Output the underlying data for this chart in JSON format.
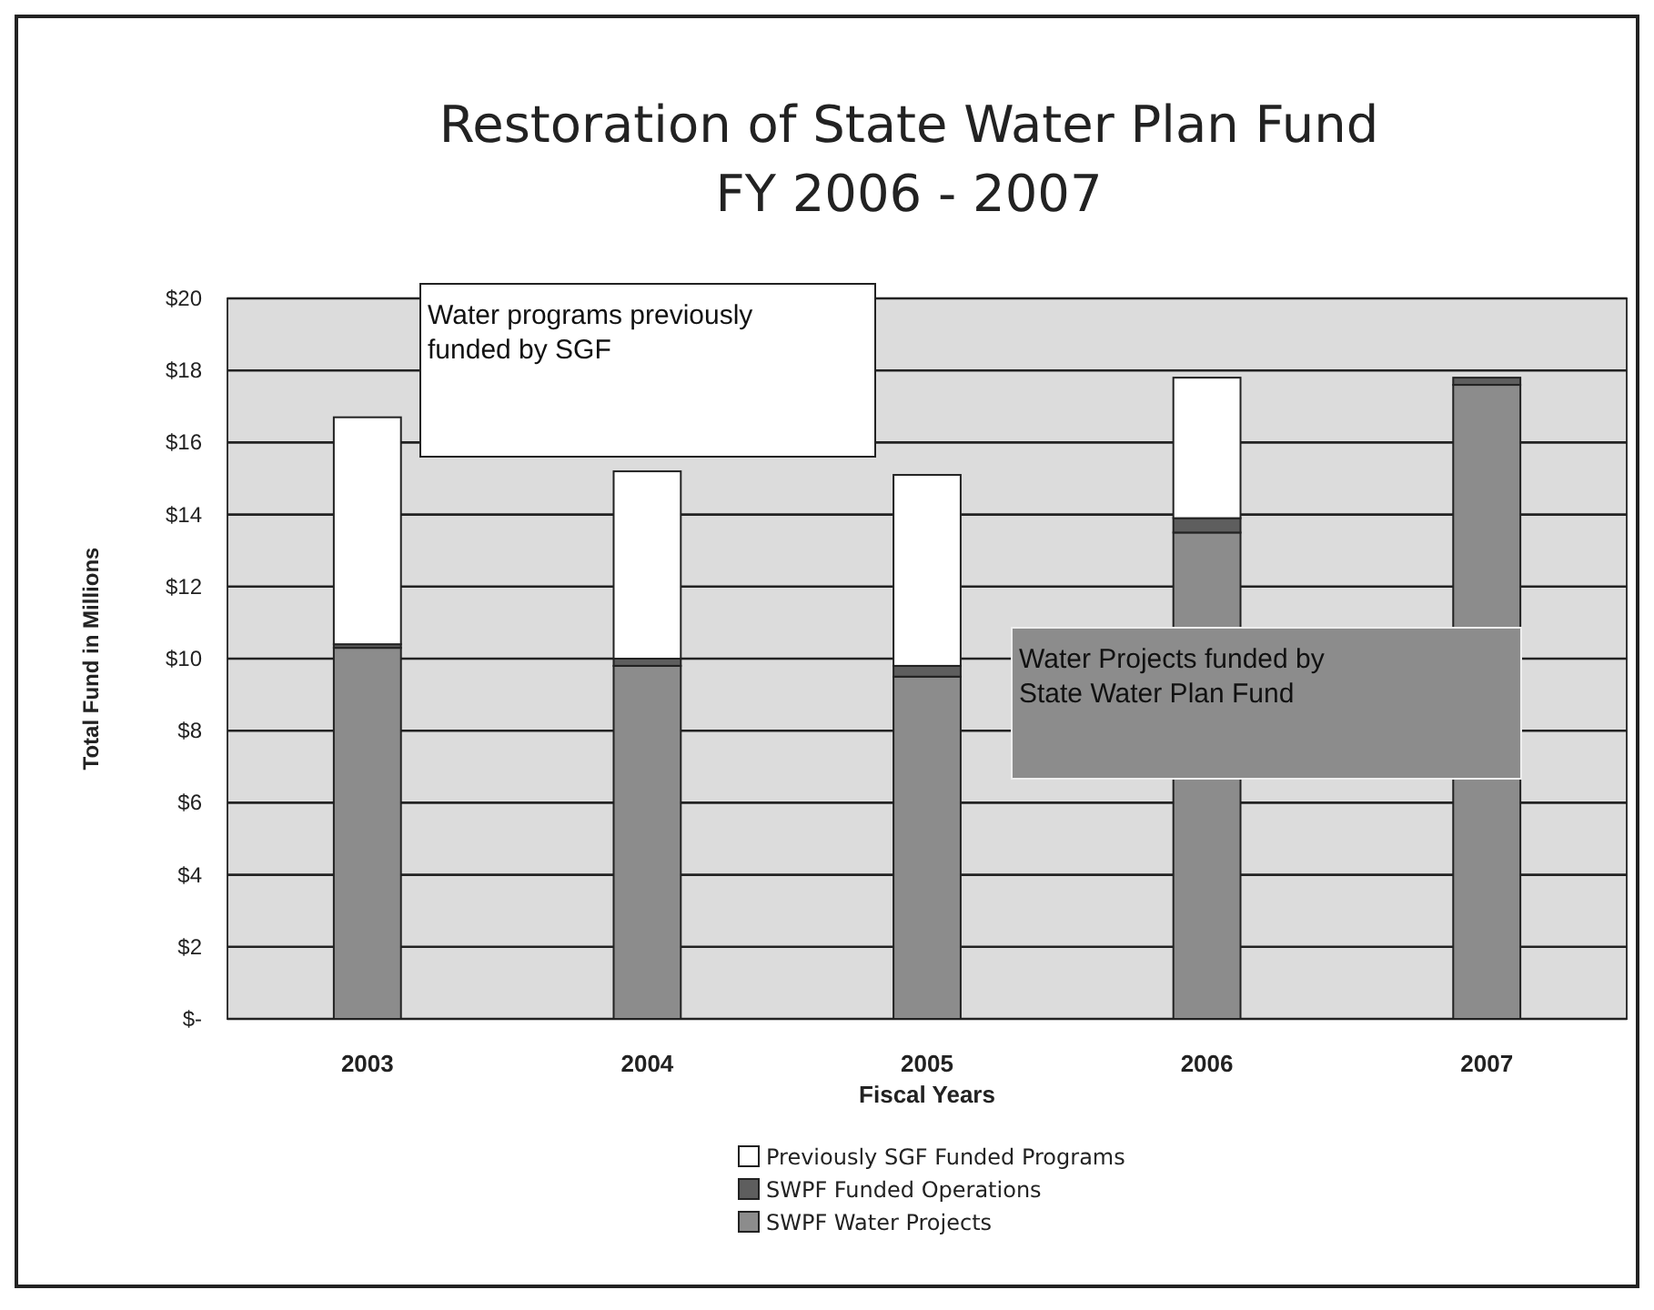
{
  "chart_data": {
    "type": "bar",
    "title": "Restoration of State Water Plan Fund",
    "subtitle": "FY 2006 - 2007",
    "xlabel": "Fiscal Years",
    "ylabel": "Total Fund in Millions",
    "categories": [
      "2003",
      "2004",
      "2005",
      "2006",
      "2007"
    ],
    "series": [
      {
        "name": "SWPF Water Projects",
        "color": "#8c8c8c",
        "values": [
          10.3,
          9.8,
          9.5,
          13.5,
          17.6
        ]
      },
      {
        "name": "SWPF Funded Operations",
        "color": "#5e5e5e",
        "values": [
          0.1,
          0.2,
          0.3,
          0.4,
          0.2
        ]
      },
      {
        "name": "Previously SGF Funded Programs",
        "color": "#ffffff",
        "values": [
          6.3,
          5.2,
          5.3,
          3.9,
          0
        ]
      }
    ],
    "stacked": true,
    "ylim": [
      0,
      20
    ],
    "yticks": [
      {
        "value": 0,
        "label": "$-"
      },
      {
        "value": 2,
        "label": "$2"
      },
      {
        "value": 4,
        "label": "$4"
      },
      {
        "value": 6,
        "label": "$6"
      },
      {
        "value": 8,
        "label": "$8"
      },
      {
        "value": 10,
        "label": "$10"
      },
      {
        "value": 12,
        "label": "$12"
      },
      {
        "value": 14,
        "label": "$14"
      },
      {
        "value": 16,
        "label": "$16"
      },
      {
        "value": 18,
        "label": "$18"
      },
      {
        "value": 20,
        "label": "$20"
      }
    ],
    "grid": "y",
    "legend": "bottom",
    "annotations": [
      "Water programs previously funded by SGF",
      "Water Projects funded by State Water Plan Fund"
    ]
  }
}
